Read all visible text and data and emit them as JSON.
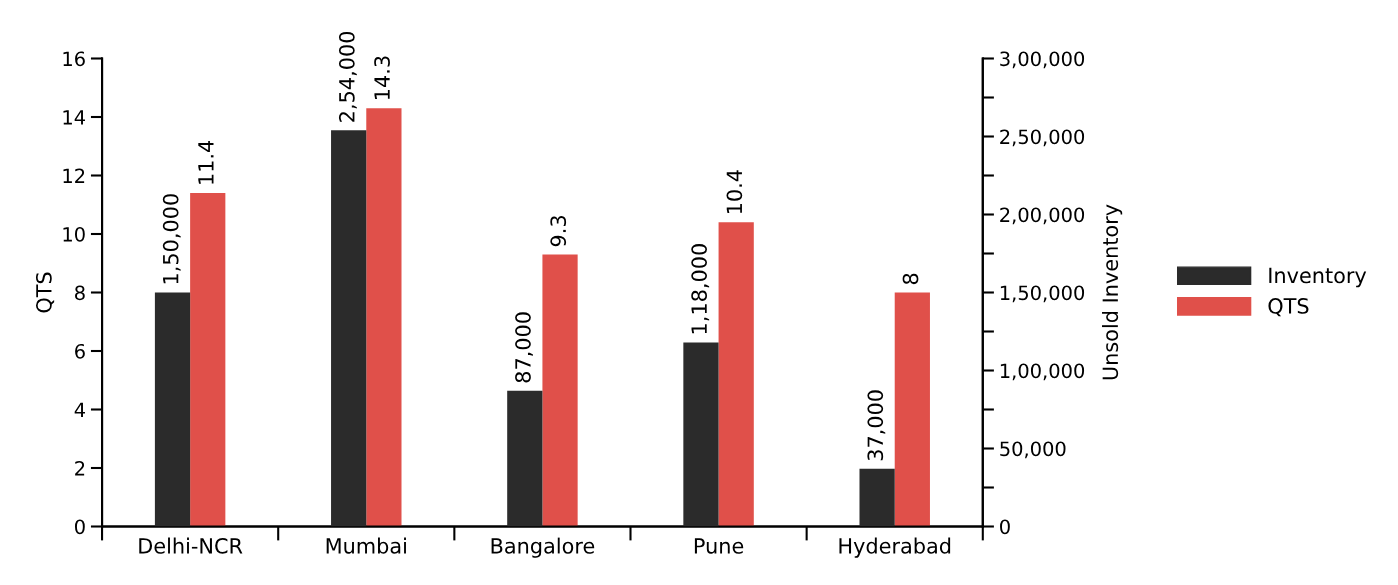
{
  "chart_data": {
    "type": "bar",
    "categories": [
      "Delhi-NCR",
      "Mumbai",
      "Bangalore",
      "Pune",
      "Hyderabad"
    ],
    "series": [
      {
        "name": "Inventory",
        "color": "#2b2b2b",
        "axis": "y2",
        "values": [
          150000,
          254000,
          87000,
          118000,
          37000
        ],
        "value_labels": [
          "1,50,000",
          "2,54,000",
          "87,000",
          "1,18,000",
          "37,000"
        ]
      },
      {
        "name": "QTS",
        "color": "#e0504a",
        "values": [
          11.4,
          14.3,
          9.3,
          10.4,
          8
        ],
        "value_labels": [
          "11.4",
          "14.3",
          "9.3",
          "10.4",
          "8"
        ]
      }
    ],
    "ylabel": "QTS",
    "y2label": "Unsold Inventory",
    "ylim": [
      0,
      16
    ],
    "yticks": [
      0,
      2,
      4,
      6,
      8,
      10,
      12,
      14,
      16
    ],
    "y2lim": [
      0,
      300000
    ],
    "y2ticks": [
      {
        "value": 0,
        "label": "0"
      },
      {
        "value": 25000,
        "label": null
      },
      {
        "value": 50000,
        "label": "50,000"
      },
      {
        "value": 75000,
        "label": null
      },
      {
        "value": 100000,
        "label": "1,00,000"
      },
      {
        "value": 125000,
        "label": null
      },
      {
        "value": 150000,
        "label": "1,50,000"
      },
      {
        "value": 175000,
        "label": null
      },
      {
        "value": 200000,
        "label": "2,00,000"
      },
      {
        "value": 225000,
        "label": null
      },
      {
        "value": 250000,
        "label": "2,50,000"
      },
      {
        "value": 275000,
        "label": null
      },
      {
        "value": 300000,
        "label": "3,00,000"
      }
    ],
    "legend": "right",
    "grid": false
  }
}
